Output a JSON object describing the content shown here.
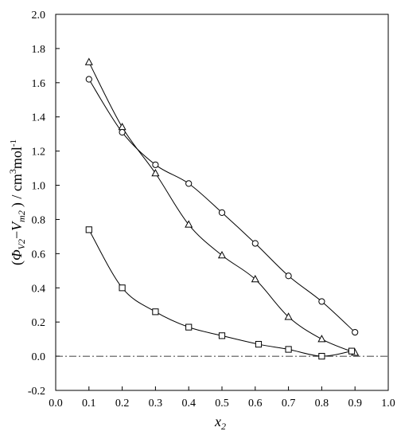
{
  "chart_data": {
    "type": "scatter",
    "title": "",
    "xlabel": {
      "base": "x",
      "sub": "2"
    },
    "ylabel": {
      "open": "(",
      "phi": "Φ",
      "phi_sub": "V2",
      "minus": "−",
      "v": "V",
      "v_sub": "m2",
      "close": ")",
      "units": " / cm",
      "sup3": "3",
      "mol": "mol",
      "supminus1": "-1"
    },
    "xlim": [
      0.0,
      1.0
    ],
    "ylim": [
      -0.2,
      2.0
    ],
    "xticks": [
      "0.0",
      "0.1",
      "0.2",
      "0.3",
      "0.4",
      "0.5",
      "0.6",
      "0.7",
      "0.8",
      "0.9",
      "1.0"
    ],
    "yticks": [
      "-0.2",
      "0.0",
      "0.2",
      "0.4",
      "0.6",
      "0.8",
      "1.0",
      "1.2",
      "1.4",
      "1.6",
      "1.8",
      "2.0"
    ],
    "grid": false,
    "reference_line": {
      "y": 0.0,
      "style": "dash-dot"
    },
    "series": [
      {
        "marker": "triangle",
        "x": [
          0.1,
          0.2,
          0.3,
          0.4,
          0.5,
          0.6,
          0.7,
          0.8,
          0.9
        ],
        "y": [
          1.72,
          1.34,
          1.07,
          0.77,
          0.59,
          0.45,
          0.23,
          0.1,
          0.02
        ]
      },
      {
        "marker": "circle",
        "x": [
          0.1,
          0.2,
          0.3,
          0.4,
          0.5,
          0.6,
          0.7,
          0.8,
          0.9
        ],
        "y": [
          1.62,
          1.31,
          1.12,
          1.01,
          0.84,
          0.66,
          0.47,
          0.32,
          0.14
        ]
      },
      {
        "marker": "square",
        "x": [
          0.1,
          0.2,
          0.3,
          0.4,
          0.5,
          0.61,
          0.7,
          0.8,
          0.89
        ],
        "y": [
          0.74,
          0.4,
          0.26,
          0.17,
          0.12,
          0.07,
          0.04,
          0.0,
          0.03
        ]
      }
    ]
  }
}
